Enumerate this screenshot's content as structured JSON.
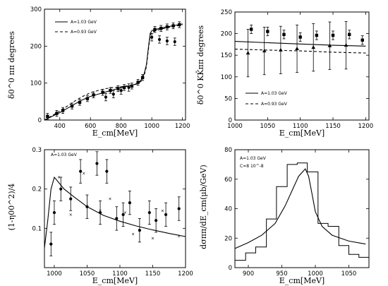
{
  "chart_data": [
    {
      "id": "tl",
      "type": "line",
      "xlabel": "E_cm[MeV]",
      "ylabel": "δ0^0 ππ degrees",
      "xlim": [
        300,
        1220
      ],
      "ylim": [
        0,
        300
      ],
      "xticks": [
        400,
        600,
        800,
        1000,
        1200
      ],
      "yticks": [
        0,
        100,
        200,
        300
      ],
      "annotations": [
        "A=1.03 GeV",
        "A=0.93 GeV"
      ],
      "series": [
        {
          "style": "solid",
          "points": [
            [
              300,
              0
            ],
            [
              350,
              10
            ],
            [
              400,
              20
            ],
            [
              450,
              32
            ],
            [
              500,
              44
            ],
            [
              550,
              55
            ],
            [
              600,
              64
            ],
            [
              650,
              70
            ],
            [
              700,
              76
            ],
            [
              750,
              82
            ],
            [
              800,
              88
            ],
            [
              850,
              92
            ],
            [
              900,
              98
            ],
            [
              930,
              108
            ],
            [
              950,
              125
            ],
            [
              965,
              150
            ],
            [
              975,
              185
            ],
            [
              982,
              210
            ],
            [
              990,
              235
            ],
            [
              1000,
              242
            ],
            [
              1050,
              248
            ],
            [
              1100,
              252
            ],
            [
              1150,
              256
            ],
            [
              1200,
              260
            ]
          ]
        },
        {
          "style": "dashed",
          "points": [
            [
              300,
              0
            ],
            [
              350,
              12
            ],
            [
              400,
              24
            ],
            [
              450,
              38
            ],
            [
              500,
              52
            ],
            [
              550,
              64
            ],
            [
              600,
              74
            ],
            [
              650,
              80
            ],
            [
              700,
              85
            ],
            [
              750,
              88
            ],
            [
              800,
              90
            ],
            [
              850,
              93
            ],
            [
              900,
              97
            ],
            [
              930,
              105
            ],
            [
              950,
              120
            ],
            [
              965,
              145
            ],
            [
              975,
              180
            ],
            [
              982,
              205
            ],
            [
              990,
              230
            ],
            [
              1000,
              238
            ],
            [
              1050,
              245
            ],
            [
              1100,
              250
            ],
            [
              1150,
              254
            ],
            [
              1200,
              258
            ]
          ]
        },
        {
          "style": "squares",
          "points": [
            [
              320,
              10
            ],
            [
              380,
              18
            ],
            [
              420,
              26
            ],
            [
              480,
              38
            ],
            [
              530,
              48
            ],
            [
              580,
              58
            ],
            [
              620,
              68
            ],
            [
              680,
              75
            ],
            [
              730,
              80
            ],
            [
              780,
              85
            ],
            [
              820,
              88
            ],
            [
              870,
              92
            ],
            [
              910,
              102
            ],
            [
              940,
              115
            ],
            [
              1020,
              245
            ],
            [
              1060,
              248
            ],
            [
              1100,
              252
            ],
            [
              1140,
              255
            ],
            [
              1180,
              258
            ]
          ],
          "err": 8
        },
        {
          "style": "dots",
          "points": [
            [
              700,
              62
            ],
            [
              750,
              70
            ],
            [
              800,
              80
            ],
            [
              850,
              88
            ],
            [
              1000,
              224
            ],
            [
              1050,
              218
            ],
            [
              1100,
              214
            ],
            [
              1150,
              212
            ]
          ],
          "err": 10
        }
      ]
    },
    {
      "id": "tr",
      "type": "scatter",
      "xlabel": "E_cm[MeV]",
      "ylabel": "δ0^0 KK̄ππ degrees",
      "xlim": [
        1000,
        1205
      ],
      "ylim": [
        0,
        250
      ],
      "xticks": [
        1000,
        1050,
        1100,
        1150,
        1200
      ],
      "yticks": [
        0,
        50,
        100,
        150,
        200,
        250
      ],
      "annotations": [
        "A=1.03 GeV",
        "A=0.93 GeV"
      ],
      "series": [
        {
          "style": "solid",
          "points": [
            [
              1000,
              182
            ],
            [
              1050,
              179
            ],
            [
              1100,
              176
            ],
            [
              1150,
              173
            ],
            [
              1200,
              171
            ]
          ]
        },
        {
          "style": "dashed",
          "points": [
            [
              1000,
              164
            ],
            [
              1050,
              162
            ],
            [
              1100,
              160
            ],
            [
              1150,
              157
            ],
            [
              1200,
              155
            ]
          ]
        },
        {
          "style": "squares",
          "points": [
            [
              1025,
              210
            ],
            [
              1050,
              205
            ],
            [
              1075,
              198
            ],
            [
              1100,
              192
            ],
            [
              1125,
              196
            ],
            [
              1150,
              196
            ],
            [
              1175,
              198
            ],
            [
              1195,
              185
            ]
          ],
          "err": 10
        },
        {
          "style": "triangles",
          "points": [
            [
              1020,
              155
            ],
            [
              1045,
              160
            ],
            [
              1070,
              162
            ],
            [
              1095,
              165
            ],
            [
              1120,
              168
            ],
            [
              1145,
              172
            ],
            [
              1170,
              173
            ]
          ],
          "err": 55
        }
      ]
    },
    {
      "id": "bl",
      "type": "scatter",
      "xlabel": "E_cm[MeV]",
      "ylabel": "(1-η00^2)/4",
      "xlim": [
        985,
        1200
      ],
      "ylim": [
        0,
        0.3
      ],
      "xticks": [
        1000,
        1050,
        1100,
        1150,
        1200
      ],
      "yticks": [
        0.1,
        0.2,
        0.3
      ],
      "annotations": [
        "A=1.03 GeV"
      ],
      "series": [
        {
          "style": "solid",
          "points": [
            [
              985,
              0.05
            ],
            [
              990,
              0.12
            ],
            [
              995,
              0.2
            ],
            [
              1000,
              0.23
            ],
            [
              1005,
              0.22
            ],
            [
              1015,
              0.2
            ],
            [
              1030,
              0.18
            ],
            [
              1050,
              0.155
            ],
            [
              1075,
              0.133
            ],
            [
              1100,
              0.118
            ],
            [
              1125,
              0.106
            ],
            [
              1150,
              0.096
            ],
            [
              1175,
              0.087
            ],
            [
              1200,
              0.079
            ]
          ]
        },
        {
          "style": "dots",
          "points": [
            [
              995,
              0.06
            ],
            [
              1000,
              0.14
            ],
            [
              1010,
              0.2
            ],
            [
              1025,
              0.175
            ],
            [
              1040,
              0.245
            ],
            [
              1050,
              0.155
            ],
            [
              1065,
              0.265
            ],
            [
              1070,
              0.14
            ],
            [
              1080,
              0.245
            ],
            [
              1095,
              0.125
            ],
            [
              1105,
              0.135
            ],
            [
              1115,
              0.165
            ],
            [
              1130,
              0.095
            ],
            [
              1145,
              0.14
            ],
            [
              1155,
              0.12
            ],
            [
              1170,
              0.135
            ],
            [
              1190,
              0.15
            ]
          ],
          "err": 0.03
        },
        {
          "style": "crosses",
          "points": [
            [
              1007,
              0.23
            ],
            [
              1025,
              0.135
            ],
            [
              1045,
              0.24
            ],
            [
              1070,
              0.145
            ],
            [
              1085,
              0.175
            ],
            [
              1108,
              0.14
            ],
            [
              1120,
              0.085
            ],
            [
              1150,
              0.075
            ],
            [
              1165,
              0.145
            ],
            [
              1190,
              0.08
            ]
          ]
        }
      ]
    },
    {
      "id": "br",
      "type": "line",
      "xlabel": "E_cm[MeV]",
      "ylabel": "dσππ/dE_cm(μb/GeV)",
      "xlim": [
        880,
        1080
      ],
      "ylim": [
        0,
        80
      ],
      "xticks": [
        900,
        950,
        1000,
        1050
      ],
      "yticks": [
        0,
        20,
        40,
        60,
        80
      ],
      "annotations": [
        "A=1.03 GeV",
        "C=8 10^-8"
      ],
      "series": [
        {
          "style": "solid",
          "points": [
            [
              880,
              13
            ],
            [
              900,
              17
            ],
            [
              920,
              22
            ],
            [
              940,
              30
            ],
            [
              955,
              42
            ],
            [
              965,
              52
            ],
            [
              975,
              62
            ],
            [
              985,
              67
            ],
            [
              990,
              62
            ],
            [
              995,
              50
            ],
            [
              1000,
              38
            ],
            [
              1010,
              28
            ],
            [
              1025,
              22
            ],
            [
              1050,
              18
            ],
            [
              1075,
              16
            ]
          ]
        },
        {
          "style": "hist",
          "edges": [
            880,
            896,
            911,
            927,
            942,
            958,
            973,
            988,
            1004,
            1019,
            1035,
            1050,
            1065,
            1080
          ],
          "values": [
            5,
            10,
            14,
            33,
            55,
            70,
            71,
            65,
            30,
            28,
            15,
            9,
            7
          ]
        }
      ]
    }
  ]
}
